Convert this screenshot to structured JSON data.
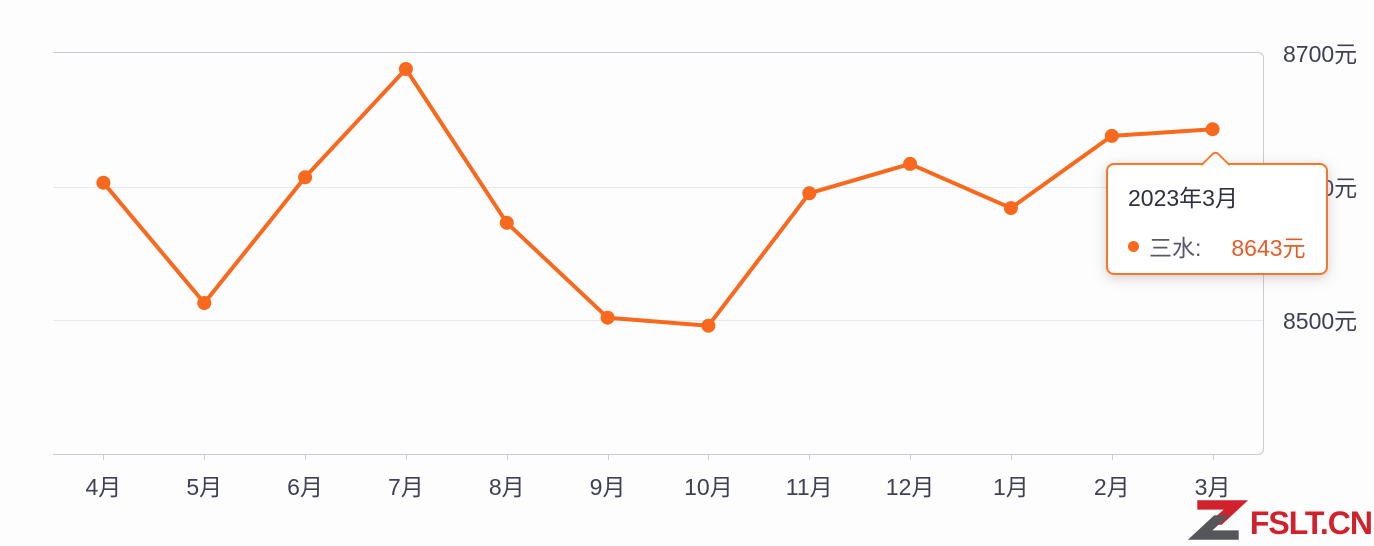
{
  "page": {
    "background": "#fdfdfe"
  },
  "chart_data": {
    "type": "line",
    "title": "",
    "xlabel": "",
    "ylabel": "",
    "categories": [
      "4月",
      "5月",
      "6月",
      "7月",
      "8月",
      "9月",
      "10月",
      "11月",
      "12月",
      "1月",
      "2月",
      "3月"
    ],
    "series": [
      {
        "name": "三水",
        "values": [
          8603,
          8513,
          8607,
          8688,
          8573,
          8502,
          8496,
          8595,
          8617,
          8584,
          8638,
          8643
        ]
      }
    ],
    "unit": "元",
    "ylim": [
      8400,
      8700
    ],
    "yticks": [
      {
        "value": 8700,
        "label": "8700元"
      },
      {
        "value": 8600,
        "label": "8600元"
      },
      {
        "value": 8500,
        "label": "8500元"
      }
    ],
    "grid": true,
    "legend_position": "none",
    "line_color": "#f8681d",
    "point_color": "#f8681d",
    "highlighted_point": {
      "category": "3月",
      "value": 8643
    }
  },
  "tooltip": {
    "title": "2023年3月",
    "series_label": "三水:",
    "value": "8643元"
  },
  "watermark": {
    "text": "FSLT.CN"
  },
  "colors": {
    "accent": "#f8681d",
    "axis_text": "#3f4054",
    "gridline": "#e7e8ee",
    "axis_line": "#c9cad4",
    "tooltip_border": "#f7762b",
    "tooltip_value": "#e85c25",
    "watermark_red": "#d0222d",
    "watermark_gray": "#55565a"
  }
}
